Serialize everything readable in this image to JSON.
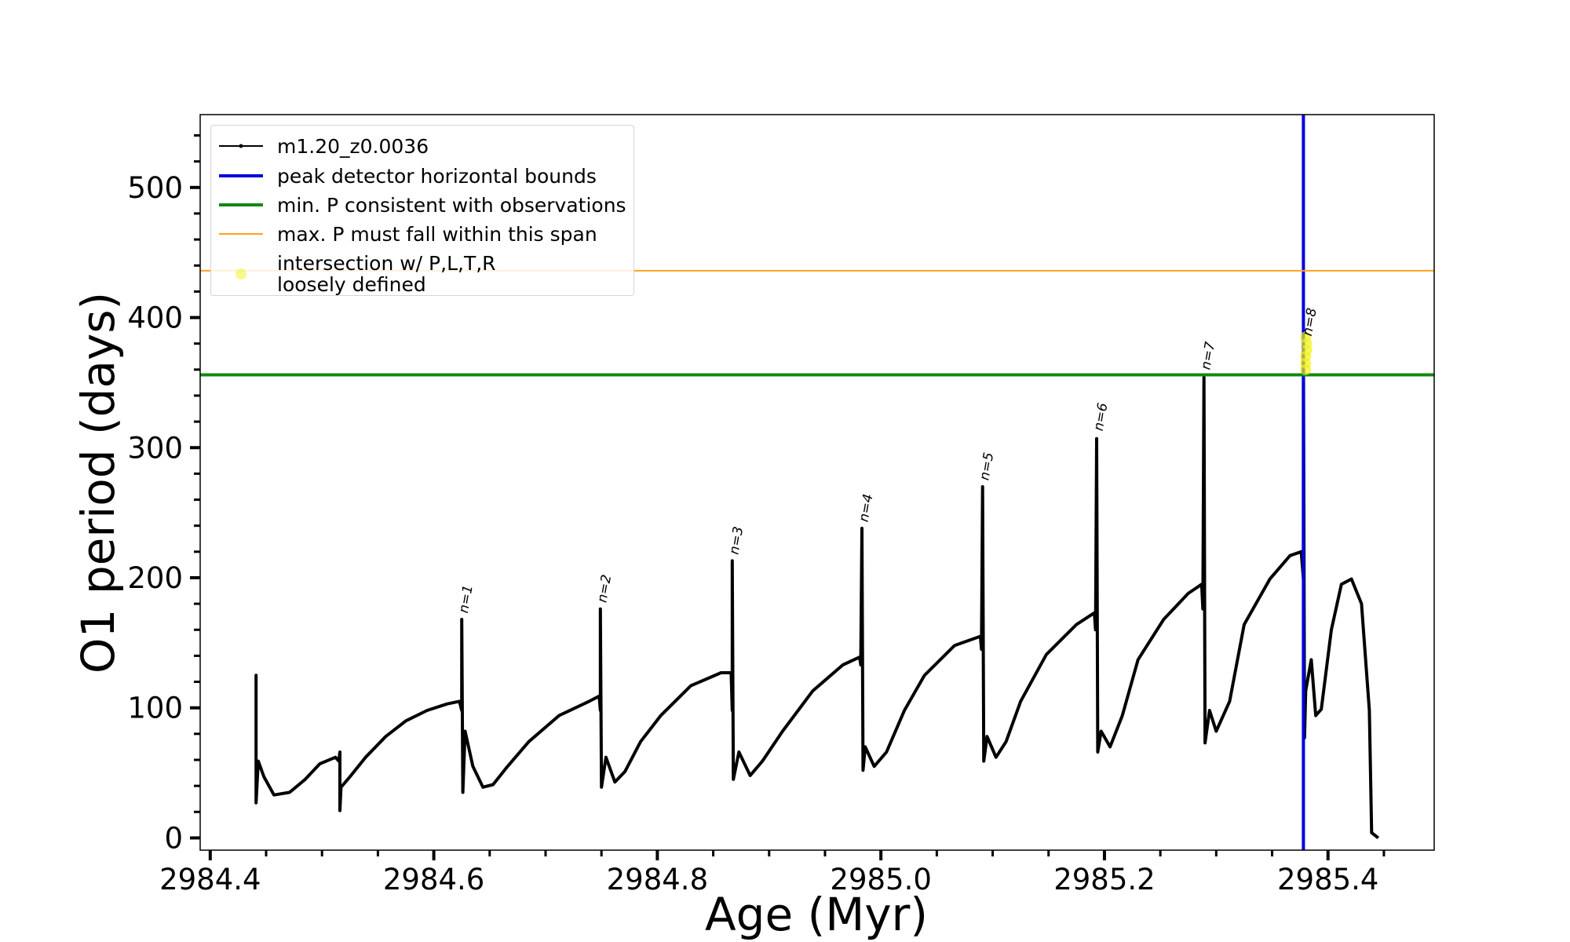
{
  "chart_data": {
    "type": "line",
    "xlabel": "Age (Myr)",
    "ylabel": "O1 period (days)",
    "xlim": [
      2984.391,
      2985.495
    ],
    "ylim": [
      -9.4,
      556
    ],
    "xticks": [
      2984.4,
      2984.6,
      2984.8,
      {
        "value": 2985,
        "label": "2985.0"
      },
      2985.2,
      2985.4
    ],
    "xminorticks": [
      2984.45,
      2984.5,
      2984.55,
      2984.65,
      2984.7,
      2984.75,
      2984.85,
      2984.9,
      2984.95,
      2985.05,
      2985.1,
      2985.15,
      2985.25,
      2985.3,
      2985.35,
      2985.45
    ],
    "yticks": [
      0,
      100,
      200,
      300,
      400,
      500
    ],
    "yminorticks": [
      20,
      40,
      60,
      80,
      120,
      140,
      160,
      180,
      220,
      240,
      260,
      280,
      320,
      340,
      360,
      380,
      420,
      440,
      460,
      480,
      520,
      540
    ],
    "legend": "upper left",
    "series": [
      {
        "name": "m1.20_z0.0036",
        "color": "#000000",
        "x": [
          2984.441,
          2984.441,
          2984.441,
          2984.443,
          2984.448,
          2984.457,
          2984.471,
          2984.485,
          2984.498,
          2984.512,
          2984.515,
          2984.516,
          2984.516,
          2984.517,
          2984.525,
          2984.539,
          2984.557,
          2984.575,
          2984.594,
          2984.612,
          2984.623,
          2984.625,
          2984.625,
          2984.626,
          2984.628,
          2984.635,
          2984.644,
          2984.653,
          2984.666,
          2984.685,
          2984.712,
          2984.739,
          2984.748,
          2984.749,
          2984.749,
          2984.75,
          2984.754,
          2984.762,
          2984.771,
          2984.785,
          2984.803,
          2984.83,
          2984.857,
          2984.866,
          2984.867,
          2984.867,
          2984.868,
          2984.873,
          2984.883,
          2984.894,
          2984.912,
          2984.939,
          2984.966,
          2984.981,
          2984.982,
          2984.983,
          2984.984,
          2984.986,
          2984.994,
          2985.005,
          2985.021,
          2985.039,
          2985.066,
          2985.089,
          2985.09,
          2985.091,
          2985.092,
          2985.095,
          2985.103,
          2985.112,
          2985.125,
          2985.148,
          2985.175,
          2985.191,
          2985.192,
          2985.193,
          2985.194,
          2985.197,
          2985.205,
          2985.216,
          2985.23,
          2985.253,
          2985.275,
          2985.287,
          2985.288,
          2985.289,
          2985.29,
          2985.294,
          2985.3,
          2985.312,
          2985.325,
          2985.348,
          2985.366,
          2985.376,
          2985.378,
          2985.378,
          2985.379,
          2985.38,
          2985.385,
          2985.389,
          2985.394,
          2985.403,
          2985.412,
          2985.421,
          2985.43,
          2985.437,
          2985.439,
          2985.445
        ],
        "values": [
          82,
          125,
          27,
          59,
          47,
          33,
          35,
          45,
          57,
          62,
          59,
          66,
          21,
          39,
          47,
          62,
          78,
          90,
          98,
          103,
          105,
          98,
          168,
          35,
          82,
          55,
          39,
          41,
          55,
          74,
          94,
          105,
          109,
          98,
          176,
          39,
          62,
          43,
          51,
          74,
          94,
          117,
          127,
          127,
          98,
          213,
          45,
          66,
          48,
          59,
          82,
          113,
          133,
          139,
          133,
          238,
          52,
          70,
          55,
          66,
          98,
          125,
          148,
          155,
          145,
          270,
          59,
          78,
          62,
          74,
          105,
          141,
          164,
          173,
          160,
          307,
          66,
          82,
          70,
          94,
          137,
          168,
          188,
          195,
          176,
          354,
          73,
          98,
          82,
          105,
          164,
          199,
          217,
          220,
          199,
          380,
          77,
          113,
          137,
          94,
          99,
          160,
          195,
          199,
          180,
          98,
          4,
          0
        ]
      },
      {
        "name": "peak detector horizontal bounds",
        "color": "#0000dd",
        "x": 2985.378
      },
      {
        "name": "min. P consistent with observations",
        "color": "#118811",
        "y": 356
      },
      {
        "name": "max. P must fall within this span",
        "color": "#ffa21f",
        "y": 436
      },
      {
        "name": "intersection w/ P,L,T,R\nloosely defined",
        "color": "#f2f21a",
        "x": [
          2985.38,
          2985.38,
          2985.38,
          2985.381,
          2985.381,
          2985.38
        ],
        "values": [
          360,
          365,
          370,
          375,
          380,
          385
        ]
      }
    ],
    "annotations": [
      {
        "text": "n=1",
        "x": 2984.626,
        "y": 170
      },
      {
        "text": "n=2",
        "x": 2984.75,
        "y": 178
      },
      {
        "text": "n=3",
        "x": 2984.868,
        "y": 215
      },
      {
        "text": "n=4",
        "x": 2984.984,
        "y": 240
      },
      {
        "text": "n=5",
        "x": 2985.092,
        "y": 272
      },
      {
        "text": "n=6",
        "x": 2985.194,
        "y": 310
      },
      {
        "text": "n=7",
        "x": 2985.29,
        "y": 357
      },
      {
        "text": "n=8",
        "x": 2985.381,
        "y": 383
      }
    ]
  }
}
